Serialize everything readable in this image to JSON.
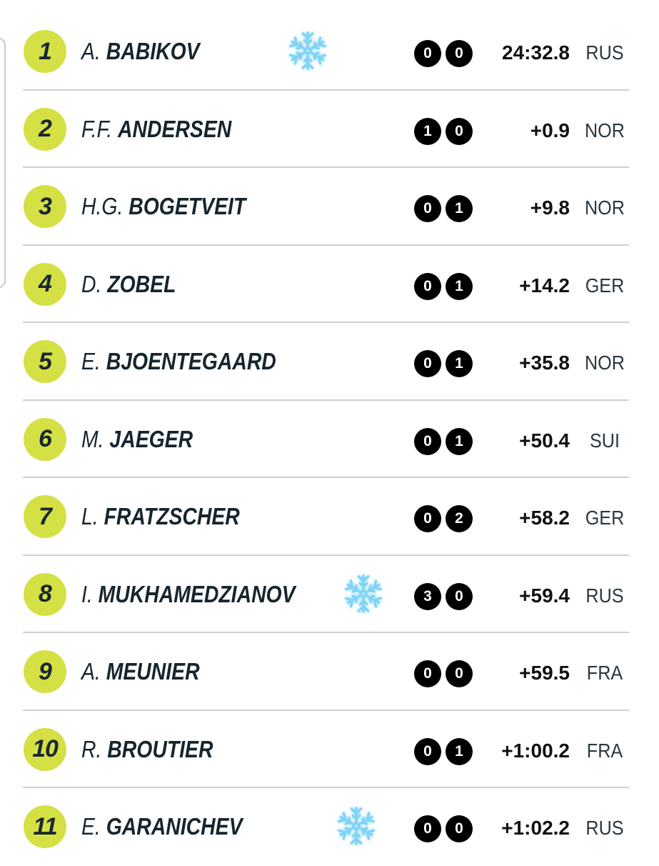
{
  "rows": [
    {
      "rank": "1",
      "first": "A.",
      "last": "BABIKOV",
      "shots": [
        "0",
        "0"
      ],
      "time": "24:32.8",
      "nation": "RUS",
      "icon": "snowflake-icon"
    },
    {
      "rank": "2",
      "first": "F.F.",
      "last": "ANDERSEN",
      "shots": [
        "1",
        "0"
      ],
      "time": "+0.9",
      "nation": "NOR"
    },
    {
      "rank": "3",
      "first": "H.G.",
      "last": "BOGETVEIT",
      "shots": [
        "0",
        "1"
      ],
      "time": "+9.8",
      "nation": "NOR"
    },
    {
      "rank": "4",
      "first": "D.",
      "last": "ZOBEL",
      "shots": [
        "0",
        "1"
      ],
      "time": "+14.2",
      "nation": "GER"
    },
    {
      "rank": "5",
      "first": "E.",
      "last": "BJOENTEGAARD",
      "shots": [
        "0",
        "1"
      ],
      "time": "+35.8",
      "nation": "NOR"
    },
    {
      "rank": "6",
      "first": "M.",
      "last": "JAEGER",
      "shots": [
        "0",
        "1"
      ],
      "time": "+50.4",
      "nation": "SUI"
    },
    {
      "rank": "7",
      "first": "L.",
      "last": "FRATZSCHER",
      "shots": [
        "0",
        "2"
      ],
      "time": "+58.2",
      "nation": "GER"
    },
    {
      "rank": "8",
      "first": "I.",
      "last": "MUKHAMEDZIANOV",
      "shots": [
        "3",
        "0"
      ],
      "time": "+59.4",
      "nation": "RUS",
      "icon": "snowflake-icon"
    },
    {
      "rank": "9",
      "first": "A.",
      "last": "MEUNIER",
      "shots": [
        "0",
        "0"
      ],
      "time": "+59.5",
      "nation": "FRA"
    },
    {
      "rank": "10",
      "first": "R.",
      "last": "BROUTIER",
      "shots": [
        "0",
        "1"
      ],
      "time": "+1:00.2",
      "nation": "FRA"
    },
    {
      "rank": "11",
      "first": "E.",
      "last": "GARANICHEV",
      "shots": [
        "0",
        "0"
      ],
      "time": "+1:02.2",
      "nation": "RUS",
      "icon": "snowflake-icon"
    }
  ],
  "colors": {
    "rank_badge": "#d5e045",
    "shot_circle": "#000000",
    "snowflake": "#7fd3f5",
    "divider": "#cfcfcf"
  }
}
